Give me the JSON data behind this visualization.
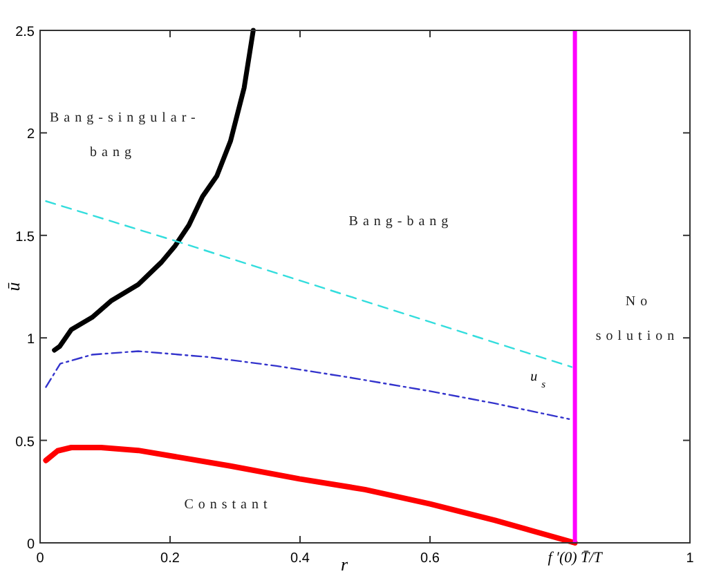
{
  "chart_data": {
    "type": "line",
    "xlabel": "r",
    "ylabel": "ū",
    "xlim": [
      0,
      1
    ],
    "ylim": [
      0,
      2.5
    ],
    "xticks": [
      0,
      0.2,
      0.4,
      0.6,
      1
    ],
    "yticks": [
      0,
      0.5,
      1,
      1.5,
      2,
      2.5
    ],
    "grid": false,
    "series": [
      {
        "color": "#ff0000",
        "line_style": "solid",
        "x": [
          0.009,
          0.027,
          0.048,
          0.094,
          0.151,
          0.222,
          0.293,
          0.399,
          0.5,
          0.6,
          0.7,
          0.823
        ],
        "values": [
          0.402,
          0.449,
          0.465,
          0.465,
          0.451,
          0.413,
          0.375,
          0.312,
          0.26,
          0.19,
          0.11,
          0.0
        ]
      },
      {
        "color": "#000000",
        "line_style": "solid",
        "x": [
          0.022,
          0.03,
          0.048,
          0.08,
          0.109,
          0.151,
          0.187,
          0.208,
          0.229,
          0.25,
          0.272,
          0.293,
          0.314,
          0.328
        ],
        "values": [
          0.94,
          0.958,
          1.04,
          1.1,
          1.18,
          1.26,
          1.37,
          1.45,
          1.55,
          1.69,
          1.79,
          1.96,
          2.22,
          2.5
        ]
      },
      {
        "color": "#33dddd",
        "line_style": "dashed",
        "x": [
          0.009,
          0.201,
          0.818
        ],
        "values": [
          1.667,
          1.48,
          0.858
        ]
      },
      {
        "name": "u$_{s}$",
        "color": "#3333cc",
        "line_style": "dashdot",
        "x": [
          0.009,
          0.031,
          0.08,
          0.151,
          0.257,
          0.364,
          0.47,
          0.6,
          0.7,
          0.814
        ],
        "values": [
          0.76,
          0.874,
          0.918,
          0.935,
          0.907,
          0.863,
          0.81,
          0.74,
          0.68,
          0.604
        ]
      }
    ],
    "ref_lines": [
      {
        "axis": "x",
        "value": 0.823,
        "color": "#ff00ff",
        "label": "f ′(0) T̄/T"
      }
    ],
    "annotations": [
      "Bang-singular-",
      "bang",
      "Bang-bang",
      "No",
      "solution",
      "Constant"
    ]
  }
}
